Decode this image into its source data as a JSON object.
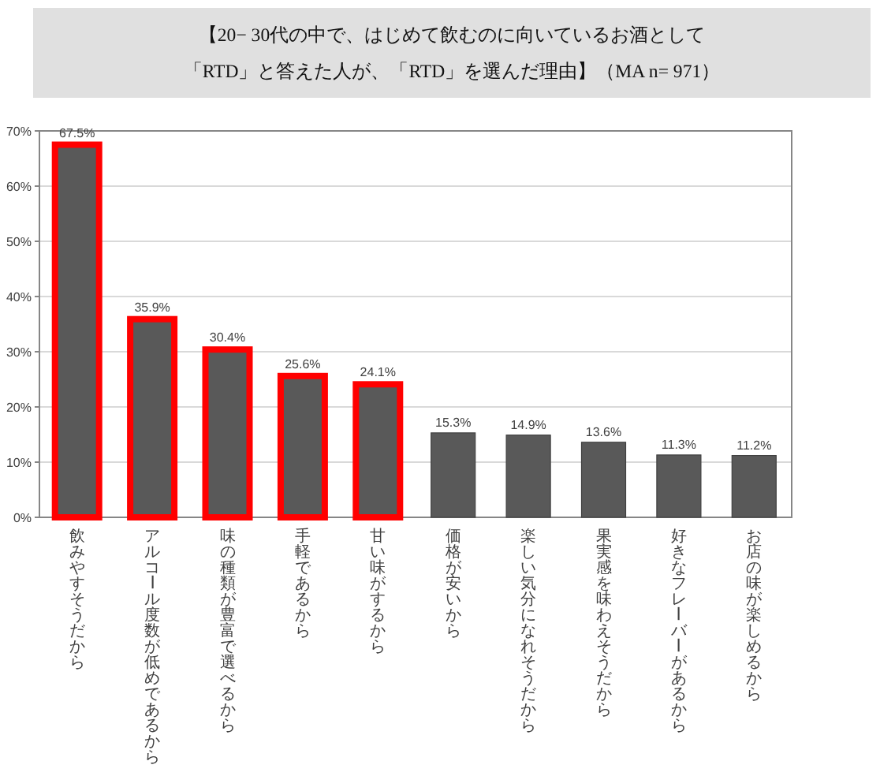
{
  "chart_data": {
    "type": "bar",
    "title": "【20− 30代の中で、はじめて飲むのに向いているお酒として「RTD」と答えた人が、「RTD」を選んだ理由】（MA n= 971）",
    "categories": [
      "飲みやすそうだから",
      "アルコール度数が低めであるから",
      "味の種類が豊富で選べるから",
      "手軽であるから",
      "甘い味がするから",
      "価格が安いから",
      "楽しい気分になれそうだから",
      "果実感を味わえそうだから",
      "好きなフレーバーがあるから",
      "お店の味が楽しめるから"
    ],
    "values": [
      67.5,
      35.9,
      30.4,
      25.6,
      24.1,
      15.3,
      14.9,
      13.6,
      11.3,
      11.2
    ],
    "value_labels": [
      "67.5%",
      "35.9%",
      "30.4%",
      "25.6%",
      "24.1%",
      "15.3%",
      "14.9%",
      "13.6%",
      "11.3%",
      "11.2%"
    ],
    "color": "#595959",
    "colors": [
      "#ff0000",
      "#ff0000",
      "#ff0000",
      "#ff0000",
      "#ff0000",
      "#595959",
      "#595959",
      "#595959",
      "#595959",
      "#595959"
    ],
    "ylim": [
      0,
      70
    ],
    "yticks": [
      {
        "value": 0,
        "label": "0%"
      },
      {
        "value": 10,
        "label": "10%"
      },
      {
        "value": 20,
        "label": "20%"
      },
      {
        "value": 30,
        "label": "30%"
      },
      {
        "value": 40,
        "label": "40%"
      },
      {
        "value": 50,
        "label": "50%"
      },
      {
        "value": 60,
        "label": "60%"
      },
      {
        "value": 70,
        "label": "70%"
      }
    ],
    "grid": "y"
  }
}
